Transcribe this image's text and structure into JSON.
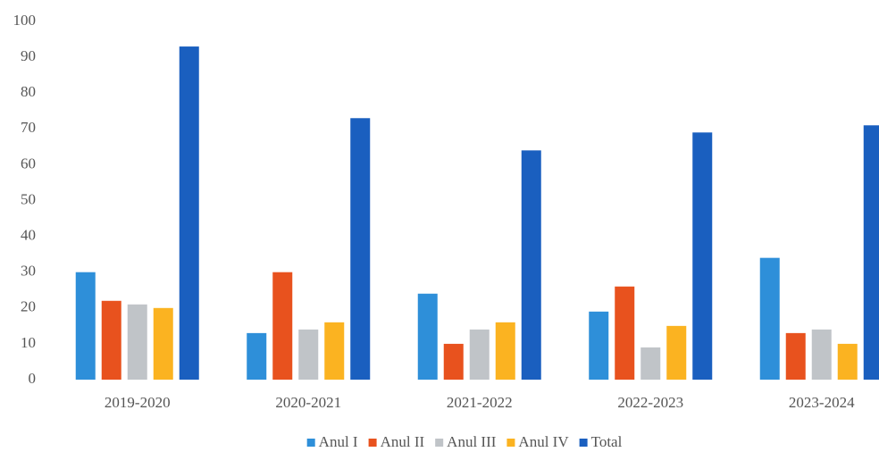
{
  "chart_data": {
    "type": "bar",
    "categories": [
      "2019-2020",
      "2020-2021",
      "2021-2022",
      "2022-2023",
      "2023-2024"
    ],
    "series": [
      {
        "name": "Anul I",
        "color": "#2e8fd9",
        "values": [
          30,
          13,
          24,
          19,
          34
        ]
      },
      {
        "name": "Anul II",
        "color": "#e8521e",
        "values": [
          22,
          30,
          10,
          26,
          13
        ]
      },
      {
        "name": "Anul III",
        "color": "#c0c4c8",
        "values": [
          21,
          14,
          14,
          9,
          14
        ]
      },
      {
        "name": "Anul IV",
        "color": "#fbb321",
        "values": [
          20,
          16,
          16,
          15,
          10
        ]
      },
      {
        "name": "Total",
        "color": "#1a5fbf",
        "values": [
          93,
          73,
          64,
          69,
          71
        ]
      }
    ],
    "ylim": [
      0,
      100
    ],
    "yticks": [
      0,
      10,
      20,
      30,
      40,
      50,
      60,
      70,
      80,
      90,
      100
    ],
    "grid": false,
    "legend": "bottom"
  }
}
